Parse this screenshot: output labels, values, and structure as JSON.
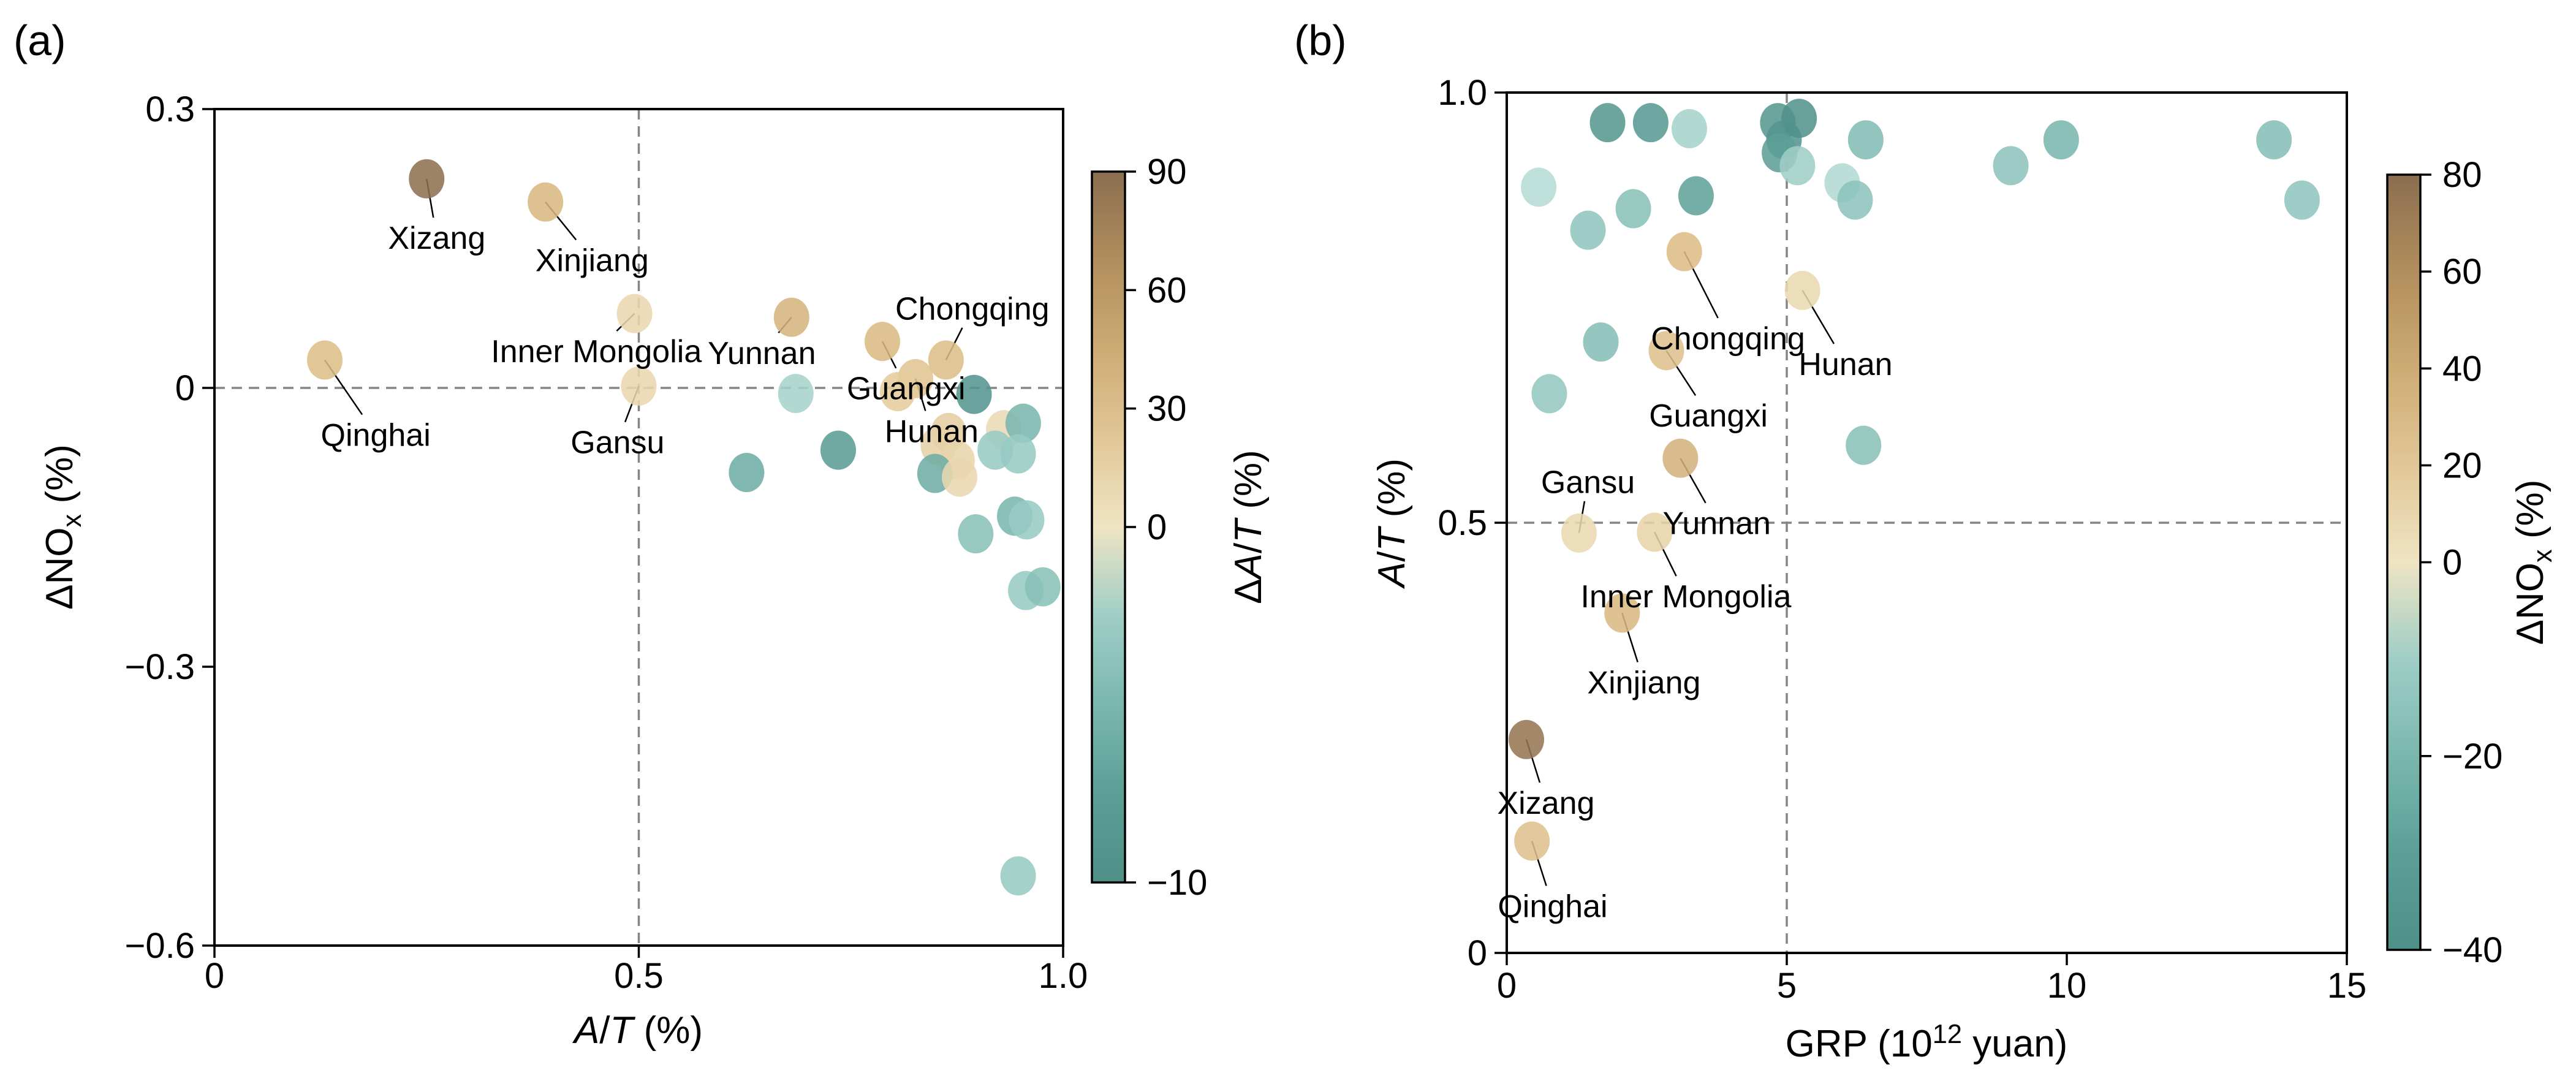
{
  "chart_data": [
    {
      "type": "scatter",
      "letter": "(a)",
      "xlabel_parts": [
        {
          "text": "A",
          "italic": true
        },
        {
          "text": "/"
        },
        {
          "text": "T",
          "italic": true
        },
        {
          "text": " (%)"
        }
      ],
      "ylabel_parts": [
        {
          "text": "ΔNO"
        },
        {
          "text": "x",
          "sub": true
        },
        {
          "text": " (%)"
        }
      ],
      "xlim": [
        0,
        1.0
      ],
      "ylim": [
        -0.6,
        0.3
      ],
      "xticks": [
        {
          "v": 0,
          "label": "0"
        },
        {
          "v": 0.5,
          "label": "0.5"
        },
        {
          "v": 1.0,
          "label": "1.0"
        }
      ],
      "yticks": [
        {
          "v": 0.3,
          "label": "0.3"
        },
        {
          "v": 0,
          "label": "0"
        },
        {
          "v": -0.3,
          "label": "−0.3"
        },
        {
          "v": -0.6,
          "label": "−0.6"
        }
      ],
      "ref_lines": {
        "x": 0.5,
        "y": 0
      },
      "colorbar": {
        "label_parts": [
          {
            "text": "Δ"
          },
          {
            "text": "A",
            "italic": true
          },
          {
            "text": "/"
          },
          {
            "text": "T",
            "italic": true
          },
          {
            "text": " (%)"
          }
        ],
        "vmin": -10,
        "vcenter": 0,
        "vmax": 90,
        "ticks": [
          {
            "v": 90,
            "label": "90"
          },
          {
            "v": 60,
            "label": "60"
          },
          {
            "v": 30,
            "label": "30"
          },
          {
            "v": 0,
            "label": "0"
          },
          {
            "v": -10,
            "label": "−10"
          }
        ]
      },
      "points": [
        {
          "name": "Qinghai",
          "x": 0.13,
          "y": 0.03,
          "c": 30
        },
        {
          "name": "Xizang",
          "x": 0.25,
          "y": 0.225,
          "c": 88
        },
        {
          "name": "Xinjiang",
          "x": 0.39,
          "y": 0.2,
          "c": 35
        },
        {
          "name": "Inner Mongolia",
          "x": 0.495,
          "y": 0.08,
          "c": 10
        },
        {
          "name": "Gansu",
          "x": 0.5,
          "y": 0.002,
          "c": 10
        },
        {
          "name": "Yunnan",
          "x": 0.68,
          "y": 0.076,
          "c": 38
        },
        {
          "name": "Guangxi",
          "x": 0.787,
          "y": 0.05,
          "c": 33
        },
        {
          "name": "Chongqing",
          "x": 0.862,
          "y": 0.03,
          "c": 30
        },
        {
          "name": "Hunan",
          "x": 0.826,
          "y": 0.01,
          "c": 25
        },
        {
          "x": 0.685,
          "y": -0.006,
          "c": -2
        },
        {
          "x": 0.627,
          "y": -0.091,
          "c": -6
        },
        {
          "x": 0.735,
          "y": -0.067,
          "c": -8
        },
        {
          "x": 0.805,
          "y": -0.004,
          "c": 20
        },
        {
          "x": 0.895,
          "y": -0.007,
          "c": -9
        },
        {
          "x": 0.865,
          "y": -0.048,
          "c": 18
        },
        {
          "x": 0.853,
          "y": -0.062,
          "c": 15
        },
        {
          "x": 0.875,
          "y": -0.078,
          "c": 12
        },
        {
          "x": 0.849,
          "y": -0.092,
          "c": -6
        },
        {
          "x": 0.878,
          "y": -0.096,
          "c": 10
        },
        {
          "x": 0.93,
          "y": -0.045,
          "c": 8
        },
        {
          "x": 0.953,
          "y": -0.038,
          "c": -5
        },
        {
          "x": 0.947,
          "y": -0.071,
          "c": -3
        },
        {
          "x": 0.92,
          "y": -0.067,
          "c": -3
        },
        {
          "x": 0.897,
          "y": -0.157,
          "c": -4
        },
        {
          "x": 0.943,
          "y": -0.138,
          "c": -5
        },
        {
          "x": 0.957,
          "y": -0.142,
          "c": -3
        },
        {
          "x": 0.956,
          "y": -0.218,
          "c": -3
        },
        {
          "x": 0.976,
          "y": -0.214,
          "c": -4
        },
        {
          "x": 0.947,
          "y": -0.525,
          "c": -3
        }
      ],
      "annotations": [
        {
          "name": "Qinghai",
          "tx": 0.19,
          "ty": -0.05
        },
        {
          "name": "Xizang",
          "tx": 0.262,
          "ty": 0.162
        },
        {
          "name": "Xinjiang",
          "tx": 0.445,
          "ty": 0.138
        },
        {
          "name": "Inner Mongolia",
          "tx": 0.45,
          "ty": 0.04
        },
        {
          "name": "Gansu",
          "tx": 0.475,
          "ty": -0.058
        },
        {
          "name": "Yunnan",
          "tx": 0.645,
          "ty": 0.038
        },
        {
          "name": "Chongqing",
          "tx": 0.893,
          "ty": 0.086
        },
        {
          "name": "Guangxi",
          "tx": 0.815,
          "ty": 0.0
        },
        {
          "name": "Hunan",
          "tx": 0.845,
          "ty": -0.046
        }
      ]
    },
    {
      "type": "scatter",
      "letter": "(b)",
      "xlabel_parts": [
        {
          "text": "GRP (10"
        },
        {
          "text": "12",
          "sup": true
        },
        {
          "text": " yuan)"
        }
      ],
      "ylabel_parts": [
        {
          "text": "A",
          "italic": true
        },
        {
          "text": "/"
        },
        {
          "text": "T",
          "italic": true
        },
        {
          "text": " (%)"
        }
      ],
      "xlim": [
        0,
        15
      ],
      "ylim": [
        0,
        1.0
      ],
      "xticks": [
        {
          "v": 0,
          "label": "0"
        },
        {
          "v": 5,
          "label": "5"
        },
        {
          "v": 10,
          "label": "10"
        },
        {
          "v": 15,
          "label": "15"
        }
      ],
      "yticks": [
        {
          "v": 1.0,
          "label": "1.0"
        },
        {
          "v": 0.5,
          "label": "0.5"
        },
        {
          "v": 0,
          "label": "0"
        }
      ],
      "ref_lines": {
        "x": 5,
        "y": 0.5
      },
      "colorbar": {
        "label_parts": [
          {
            "text": "ΔNO"
          },
          {
            "text": "x",
            "sub": true
          },
          {
            "text": " (%)"
          }
        ],
        "vmin": -40,
        "vcenter": 0,
        "vmax": 80,
        "ticks": [
          {
            "v": 80,
            "label": "80"
          },
          {
            "v": 60,
            "label": "60"
          },
          {
            "v": 40,
            "label": "40"
          },
          {
            "v": 20,
            "label": "20"
          },
          {
            "v": 0,
            "label": "0"
          },
          {
            "v": -20,
            "label": "−20"
          },
          {
            "v": -40,
            "label": "−40"
          }
        ]
      },
      "points": [
        {
          "name": "Xizang",
          "x": 0.35,
          "y": 0.248,
          "c": 75
        },
        {
          "name": "Qinghai",
          "x": 0.45,
          "y": 0.13,
          "c": 25
        },
        {
          "name": "Xinjiang",
          "x": 2.06,
          "y": 0.395,
          "c": 30
        },
        {
          "name": "Gansu",
          "x": 1.29,
          "y": 0.488,
          "c": 8
        },
        {
          "name": "Inner Mongolia",
          "x": 2.64,
          "y": 0.489,
          "c": 12
        },
        {
          "name": "Yunnan",
          "x": 3.1,
          "y": 0.575,
          "c": 35
        },
        {
          "name": "Guangxi",
          "x": 2.85,
          "y": 0.7,
          "c": 25
        },
        {
          "name": "Chongqing",
          "x": 3.17,
          "y": 0.815,
          "c": 28
        },
        {
          "name": "Hunan",
          "x": 5.28,
          "y": 0.77,
          "c": 8
        },
        {
          "x": 0.57,
          "y": 0.89,
          "c": -4
        },
        {
          "x": 0.76,
          "y": 0.65,
          "c": -13
        },
        {
          "x": 1.45,
          "y": 0.84,
          "c": -14
        },
        {
          "x": 1.68,
          "y": 0.71,
          "c": -17
        },
        {
          "x": 1.8,
          "y": 0.965,
          "c": -35
        },
        {
          "x": 2.26,
          "y": 0.865,
          "c": -16
        },
        {
          "x": 2.57,
          "y": 0.965,
          "c": -33
        },
        {
          "x": 3.26,
          "y": 0.958,
          "c": -8
        },
        {
          "x": 3.38,
          "y": 0.88,
          "c": -28
        },
        {
          "x": 4.84,
          "y": 0.965,
          "c": -35
        },
        {
          "x": 4.95,
          "y": 0.945,
          "c": -36
        },
        {
          "x": 5.22,
          "y": 0.97,
          "c": -38
        },
        {
          "x": 4.87,
          "y": 0.93,
          "c": -30
        },
        {
          "x": 5.19,
          "y": 0.915,
          "c": -10
        },
        {
          "x": 5.99,
          "y": 0.895,
          "c": -5
        },
        {
          "x": 6.22,
          "y": 0.875,
          "c": -15
        },
        {
          "x": 6.41,
          "y": 0.945,
          "c": -18
        },
        {
          "x": 6.37,
          "y": 0.59,
          "c": -16
        },
        {
          "x": 9.0,
          "y": 0.915,
          "c": -15
        },
        {
          "x": 9.9,
          "y": 0.945,
          "c": -20
        },
        {
          "x": 13.7,
          "y": 0.945,
          "c": -17
        },
        {
          "x": 14.2,
          "y": 0.875,
          "c": -14
        }
      ],
      "annotations": [
        {
          "name": "Xizang",
          "tx": 0.7,
          "ty": 0.175
        },
        {
          "name": "Qinghai",
          "tx": 0.82,
          "ty": 0.055
        },
        {
          "name": "Xinjiang",
          "tx": 2.45,
          "ty": 0.315
        },
        {
          "name": "Gansu",
          "tx": 1.45,
          "ty": 0.548
        },
        {
          "name": "Inner Mongolia",
          "tx": 3.2,
          "ty": 0.415
        },
        {
          "name": "Yunnan",
          "tx": 3.75,
          "ty": 0.5
        },
        {
          "name": "Guangxi",
          "tx": 3.6,
          "ty": 0.625
        },
        {
          "name": "Chongqing",
          "tx": 3.95,
          "ty": 0.715
        },
        {
          "name": "Hunan",
          "tx": 6.05,
          "ty": 0.685
        }
      ]
    }
  ],
  "style": {
    "marker_opacity": 0.87,
    "brown_stops": [
      [
        0,
        "#efe4c3"
      ],
      [
        0.35,
        "#dcbc85"
      ],
      [
        0.7,
        "#b9945f"
      ],
      [
        1,
        "#8a6e50"
      ]
    ],
    "teal_stops": [
      [
        0,
        "#c6e3dd"
      ],
      [
        0.35,
        "#8fc6bd"
      ],
      [
        0.7,
        "#5fa29a"
      ],
      [
        1,
        "#4f8f88"
      ]
    ],
    "dash_color": "#858585",
    "spine_color": "#000000",
    "background": "#ffffff"
  }
}
